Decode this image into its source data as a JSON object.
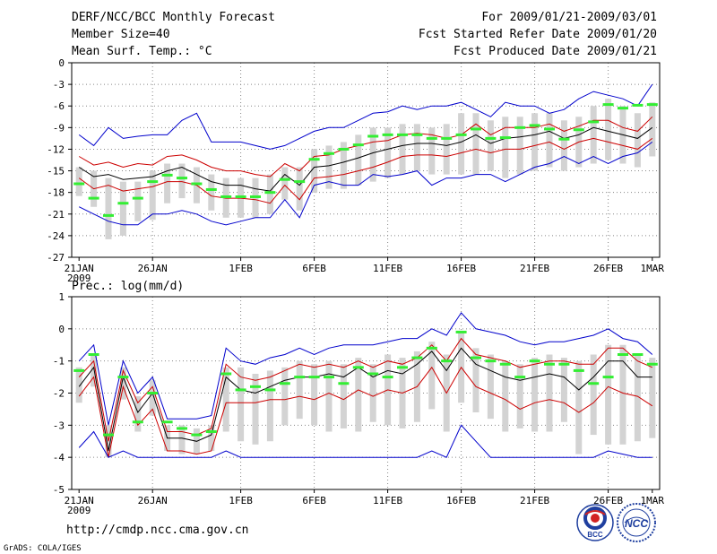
{
  "header": {
    "title": "DERF/NCC/BCC Monthly Forecast",
    "member": "Member Size=40",
    "variable": "Mean Surf. Temp.: °C",
    "period": "For 2009/01/21-2009/03/01",
    "started": "Fcst Started Refer Date 2009/01/20",
    "produced": "Fcst Produced Date 2009/01/21"
  },
  "footer": {
    "url": "http://cmdp.ncc.cma.gov.cn",
    "grads": "GrADS: COLA/IGES",
    "logo_bcc": "BCC",
    "logo_ncc": "NCC"
  },
  "colors": {
    "envelope": "#0000cc",
    "spread": "#cc0000",
    "mean": "#000000",
    "box": "#d3d3d3",
    "obs": "#33ee33",
    "grid": "#888888"
  },
  "chart_data": [
    {
      "type": "line",
      "title": "Mean Surf. Temp.: °C",
      "x_ticks": [
        "21JAN",
        "26JAN",
        "1FEB",
        "6FEB",
        "11FEB",
        "16FEB",
        "21FEB",
        "26FEB",
        "1MAR"
      ],
      "x_year": "2009",
      "days": 40,
      "ylim": [
        -27,
        0
      ],
      "y_ticks": [
        "0",
        "-3",
        "-6",
        "-9",
        "-12",
        "-15",
        "-18",
        "-21",
        "-24",
        "-27"
      ],
      "series": [
        {
          "name": "max",
          "values": [
            -10,
            -11.5,
            -9,
            -10.5,
            -10.2,
            -10,
            -10,
            -8,
            -7,
            -11,
            -11,
            -11,
            -11.5,
            -12,
            -11.5,
            -10.5,
            -9.5,
            -9,
            -9,
            -8,
            -7,
            -6.8,
            -6,
            -6.5,
            -6,
            -6,
            -5.5,
            -6.5,
            -7.5,
            -5.5,
            -6,
            -6,
            -7,
            -6.5,
            -5,
            -4,
            -4.5,
            -5,
            -6,
            -3
          ]
        },
        {
          "name": "upper",
          "values": [
            -13,
            -14.2,
            -13.8,
            -14.5,
            -14,
            -14.2,
            -13,
            -12.8,
            -13.5,
            -14.5,
            -15,
            -15,
            -15.5,
            -15.8,
            -14,
            -15,
            -13,
            -12.8,
            -12,
            -11.5,
            -11,
            -10.8,
            -10,
            -9.8,
            -10,
            -10.5,
            -10,
            -8.5,
            -10,
            -9,
            -9,
            -9,
            -8.5,
            -9.5,
            -8.8,
            -8,
            -8,
            -9,
            -9.5,
            -7.5
          ]
        },
        {
          "name": "mean",
          "values": [
            -14.5,
            -15.8,
            -15.5,
            -16.2,
            -16,
            -15.8,
            -15,
            -14.5,
            -15.5,
            -16.5,
            -17,
            -17,
            -17.5,
            -17.8,
            -15.5,
            -17,
            -14.5,
            -14.3,
            -13.8,
            -13.2,
            -12.5,
            -12,
            -11.5,
            -11.2,
            -11.2,
            -11.5,
            -11,
            -10,
            -11.2,
            -10.5,
            -10.3,
            -10,
            -9.5,
            -10.5,
            -10,
            -9,
            -9.5,
            -10,
            -10.5,
            -9
          ]
        },
        {
          "name": "lower",
          "values": [
            -16,
            -17.5,
            -17,
            -17.8,
            -17.5,
            -17.2,
            -16.5,
            -16.5,
            -17,
            -18.5,
            -18.8,
            -18.8,
            -19,
            -19.5,
            -17,
            -19,
            -16,
            -15.8,
            -15.5,
            -15,
            -14.5,
            -13.8,
            -13,
            -12.8,
            -12.8,
            -13,
            -12.5,
            -12,
            -12.5,
            -12,
            -12,
            -11.5,
            -11,
            -12,
            -11,
            -10.5,
            -11,
            -11.5,
            -12,
            -10.5
          ]
        },
        {
          "name": "min",
          "values": [
            -20,
            -21,
            -22,
            -22.5,
            -22.5,
            -21,
            -21,
            -20.5,
            -21,
            -22,
            -22.5,
            -22,
            -21.5,
            -21.5,
            -19,
            -21.5,
            -17,
            -16.5,
            -17,
            -17,
            -15.5,
            -15.8,
            -15.5,
            -15,
            -17,
            -16,
            -16,
            -15.5,
            -15.5,
            -16.5,
            -15.5,
            -14.5,
            -14,
            -13,
            -14,
            -13,
            -14,
            -13,
            -12.5,
            -11
          ]
        },
        {
          "name": "observed",
          "values": [
            -16.8,
            -18.8,
            -21.2,
            -19.5,
            -18.8,
            -16.5,
            -15.6,
            -16,
            -16.8,
            -17.6,
            -18.6,
            -18.6,
            -18.6,
            -18,
            -16.2,
            -16.5,
            -13.4,
            -12.6,
            -12,
            -11.4,
            -10.2,
            -10,
            -10,
            -10,
            -10.5,
            -10.5,
            -10,
            -9.2,
            -10.5,
            -10.4,
            -9,
            -8.7,
            -9.2,
            -10.6,
            -9.3,
            -8.2,
            -5.8,
            -6.3,
            -5.9,
            -5.8
          ]
        }
      ],
      "boxes_low": [
        -18.5,
        -20,
        -24.5,
        -24,
        -22,
        -21.8,
        -19.5,
        -18.8,
        -19.5,
        -20.5,
        -21.5,
        -21.5,
        -21.5,
        -21,
        -19,
        -20.5,
        -18,
        -17.5,
        -17.5,
        -17,
        -16.5,
        -16,
        -15.5,
        -15,
        -15.5,
        -15.5,
        -15.5,
        -15.5,
        -15,
        -16,
        -15.5,
        -15,
        -14.5,
        -15,
        -14.5,
        -14,
        -13.5,
        -14,
        -14.5,
        -13
      ],
      "boxes_high": [
        -14.5,
        -15,
        -16,
        -16.5,
        -16.5,
        -15,
        -14,
        -14,
        -14.5,
        -15.5,
        -16,
        -16,
        -16,
        -15.5,
        -14.5,
        -14.5,
        -12,
        -11.5,
        -11,
        -10,
        -9,
        -9,
        -8.5,
        -8.5,
        -9,
        -8.5,
        -7,
        -7,
        -8,
        -7.5,
        -7.5,
        -7,
        -7,
        -8,
        -7.5,
        -6,
        -5,
        -6,
        -7,
        -5.5
      ]
    },
    {
      "type": "line",
      "title": "Prec.: log(mm/d)",
      "x_ticks": [
        "21JAN",
        "26JAN",
        "1FEB",
        "6FEB",
        "11FEB",
        "16FEB",
        "21FEB",
        "26FEB",
        "1MAR"
      ],
      "x_year": "2009",
      "days": 40,
      "ylim": [
        -5,
        1
      ],
      "y_ticks": [
        "1",
        "0",
        "-1",
        "-2",
        "-3",
        "-4",
        "-5"
      ],
      "series": [
        {
          "name": "max",
          "values": [
            -1,
            -0.5,
            -3,
            -1,
            -2,
            -1.5,
            -2.8,
            -2.8,
            -2.8,
            -2.7,
            -0.6,
            -1,
            -1.1,
            -0.9,
            -0.8,
            -0.6,
            -0.8,
            -0.6,
            -0.5,
            -0.5,
            -0.5,
            -0.4,
            -0.3,
            -0.3,
            0,
            -0.2,
            0.5,
            0,
            -0.1,
            -0.2,
            -0.4,
            -0.5,
            -0.4,
            -0.4,
            -0.3,
            -0.2,
            0,
            -0.3,
            -0.4,
            -0.8
          ]
        },
        {
          "name": "upper",
          "values": [
            -1.5,
            -1,
            -3.5,
            -1.3,
            -2.3,
            -1.8,
            -3.2,
            -3.2,
            -3.3,
            -3.1,
            -1.1,
            -1.5,
            -1.6,
            -1.5,
            -1.3,
            -1.1,
            -1.2,
            -1.1,
            -1.2,
            -1,
            -1.2,
            -1,
            -1.1,
            -0.9,
            -0.5,
            -1,
            -0.3,
            -0.8,
            -0.9,
            -1,
            -1.2,
            -1.1,
            -1,
            -1,
            -1.1,
            -1.1,
            -0.6,
            -0.6,
            -1,
            -1.2
          ]
        },
        {
          "name": "mean",
          "values": [
            -1.8,
            -1.2,
            -3.8,
            -1.5,
            -2.6,
            -2,
            -3.4,
            -3.4,
            -3.5,
            -3.3,
            -1.5,
            -1.9,
            -2,
            -1.8,
            -1.6,
            -1.5,
            -1.5,
            -1.4,
            -1.5,
            -1.2,
            -1.5,
            -1.3,
            -1.4,
            -1.1,
            -0.7,
            -1.3,
            -0.6,
            -1.1,
            -1.3,
            -1.5,
            -1.6,
            -1.5,
            -1.4,
            -1.5,
            -1.9,
            -1.5,
            -1,
            -1,
            -1.5,
            -1.5
          ]
        },
        {
          "name": "lower",
          "values": [
            -2.1,
            -1.5,
            -4,
            -1.8,
            -3,
            -2.5,
            -3.8,
            -3.8,
            -3.9,
            -3.8,
            -2.3,
            -2.3,
            -2.3,
            -2.2,
            -2.2,
            -2.1,
            -2.2,
            -2,
            -2.2,
            -1.9,
            -2.1,
            -1.9,
            -2,
            -1.8,
            -1.2,
            -2,
            -1.2,
            -1.8,
            -2,
            -2.2,
            -2.5,
            -2.3,
            -2.2,
            -2.3,
            -2.6,
            -2.3,
            -1.8,
            -2,
            -2.1,
            -2.4
          ]
        },
        {
          "name": "min",
          "values": [
            -3.7,
            -3.2,
            -4,
            -3.8,
            -4,
            -4,
            -4,
            -4,
            -4,
            -4,
            -3.8,
            -4,
            -4,
            -4,
            -4,
            -4,
            -4,
            -4,
            -4,
            -4,
            -4,
            -4,
            -4,
            -4,
            -3.8,
            -4,
            -3,
            -3.5,
            -4,
            -4,
            -4,
            -4,
            -4,
            -4,
            -4,
            -4,
            -3.8,
            -3.9,
            -4,
            -4
          ]
        },
        {
          "name": "observed",
          "values": [
            -1.3,
            -0.8,
            -3.3,
            -1.5,
            -2.9,
            -2,
            -2.9,
            -3.1,
            -3.3,
            -3.2,
            -1.4,
            -1.9,
            -1.8,
            -1.9,
            -1.7,
            -1.5,
            -1.5,
            -1.5,
            -1.7,
            -1.2,
            -1.4,
            -1.5,
            -1.2,
            -0.9,
            -0.6,
            -1,
            -0.1,
            -0.9,
            -1,
            -1.1,
            -1.5,
            -1,
            -1.1,
            -1.1,
            -1.3,
            -1.7,
            -1.5,
            -0.8,
            -0.8,
            -1.1
          ]
        }
      ],
      "boxes_low": [
        -2.3,
        -1.8,
        -4,
        -2.2,
        -3.2,
        -2.7,
        -3.8,
        -3.9,
        -3.9,
        -3.8,
        -3.2,
        -3.5,
        -3.6,
        -3.5,
        -3,
        -2.8,
        -3,
        -3.2,
        -3.1,
        -3.2,
        -2.9,
        -3,
        -3.1,
        -2.9,
        -2.5,
        -3.2,
        -2.3,
        -2.6,
        -2.8,
        -3.2,
        -3.1,
        -3.2,
        -3.2,
        -2.9,
        -3.9,
        -3.3,
        -3.6,
        -3.6,
        -3.5,
        -3.4
      ],
      "boxes_high": [
        -1.2,
        -0.8,
        -3,
        -1.2,
        -2.1,
        -1.6,
        -3,
        -3,
        -3.1,
        -3,
        -1.2,
        -1.2,
        -1.4,
        -1.3,
        -1.2,
        -1,
        -1.1,
        -1,
        -1.1,
        -0.9,
        -1.1,
        -0.8,
        -0.9,
        -0.7,
        -0.4,
        -0.8,
        -0.1,
        -0.6,
        -0.8,
        -1,
        -1.1,
        -0.9,
        -0.8,
        -0.9,
        -1,
        -0.8,
        -0.5,
        -0.5,
        -0.8,
        -0.9
      ]
    }
  ]
}
